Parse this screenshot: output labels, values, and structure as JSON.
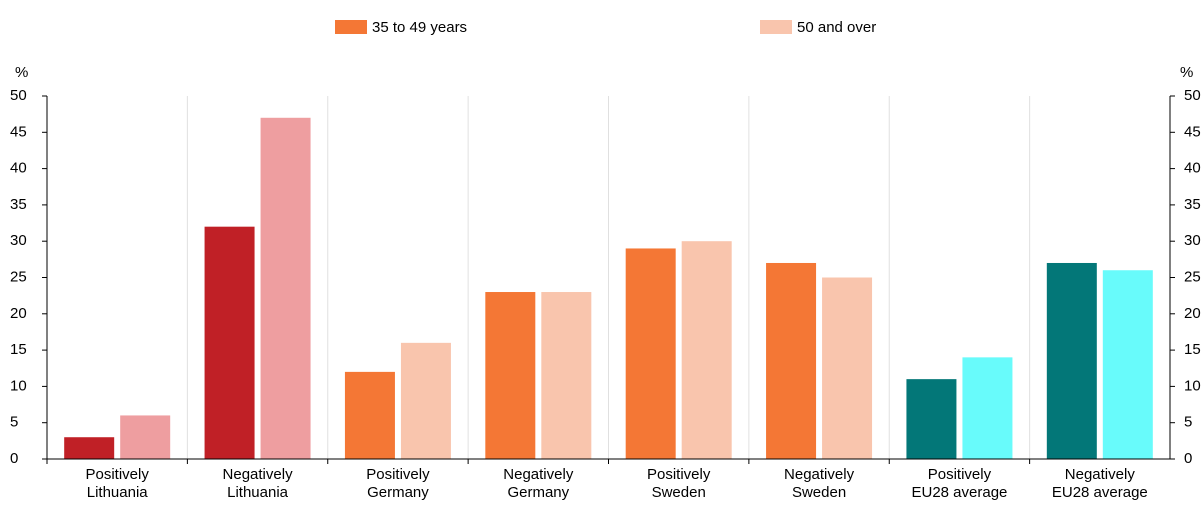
{
  "chart_data": {
    "type": "bar",
    "categories": [
      [
        "Positively",
        "Lithuania"
      ],
      [
        "Negatively",
        "Lithuania"
      ],
      [
        "Positively",
        "Germany"
      ],
      [
        "Negatively",
        "Germany"
      ],
      [
        "Positively",
        "Sweden"
      ],
      [
        "Negatively",
        "Sweden"
      ],
      [
        "Positively",
        "EU28 average"
      ],
      [
        "Negatively",
        "EU28 average"
      ]
    ],
    "series": [
      {
        "name": "35 to 49 years",
        "color": "#f47735",
        "colors": [
          "#c02026",
          "#c02026",
          "#f47735",
          "#f47735",
          "#f47735",
          "#f47735",
          "#037778",
          "#037778"
        ],
        "values": [
          3,
          32,
          12,
          23,
          29,
          27,
          11,
          27
        ]
      },
      {
        "name": "50 and over",
        "color": "#f9c5ad",
        "colors": [
          "#ee9ea0",
          "#ee9ea0",
          "#f9c5ad",
          "#f9c5ad",
          "#f9c5ad",
          "#f9c5ad",
          "#68fbfb",
          "#68fbfb"
        ],
        "values": [
          6,
          47,
          16,
          23,
          30,
          25,
          14,
          26
        ]
      }
    ],
    "ylabel": "%",
    "y2label": "%",
    "ylim": [
      0,
      50
    ],
    "yticks": [
      0,
      5,
      10,
      15,
      20,
      25,
      30,
      35,
      40,
      45,
      50
    ],
    "y2lim": [
      0,
      50
    ],
    "y2ticks": [
      0,
      5,
      10,
      15,
      20,
      25,
      30,
      35,
      40,
      45,
      50
    ],
    "grid": "x",
    "legend": "top"
  }
}
